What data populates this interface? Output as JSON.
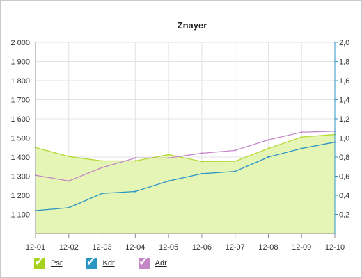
{
  "chart_data": {
    "type": "line",
    "title": "Znayer",
    "categories": [
      "12-01",
      "12-02",
      "12-03",
      "12-04",
      "12-05",
      "12-06",
      "12-07",
      "12-08",
      "12-09",
      "12-10"
    ],
    "y_left": {
      "ylim": [
        1000,
        2000
      ],
      "ticks": [
        "2 000",
        "1 900",
        "1 800",
        "1 700",
        "1 600",
        "1 500",
        "1 400",
        "1 300",
        "1 200",
        "1 100"
      ]
    },
    "y_right": {
      "ylim": [
        0,
        2.0
      ],
      "ticks": [
        "2,0",
        "1,8",
        "1,6",
        "1,4",
        "1,2",
        "1,0",
        "0,8",
        "0,6",
        "0,4",
        "0,2"
      ]
    },
    "series": [
      {
        "name": "Psr",
        "axis": "left",
        "style": "area",
        "color": "#b5d832",
        "fill": "#e4f5b6",
        "values": [
          1450,
          1403,
          1380,
          1380,
          1413,
          1377,
          1378,
          1445,
          1505,
          1518
        ]
      },
      {
        "name": "Kdr",
        "axis": "left",
        "style": "line",
        "color": "#2b95c4",
        "values": [
          1120,
          1135,
          1210,
          1220,
          1275,
          1313,
          1325,
          1400,
          1445,
          1478
        ]
      },
      {
        "name": "Adr",
        "axis": "right",
        "style": "line",
        "color": "#c487c8",
        "values": [
          0.61,
          0.55,
          0.69,
          0.79,
          0.79,
          0.84,
          0.87,
          0.98,
          1.06,
          1.07
        ]
      }
    ],
    "grid": true,
    "legend_position": "bottom-left"
  },
  "legend": {
    "items": [
      {
        "label": "Psr",
        "color": "#a6d11f"
      },
      {
        "label": "Kdr",
        "color": "#2b95c4"
      },
      {
        "label": "Adr",
        "color": "#c487c8"
      }
    ]
  }
}
